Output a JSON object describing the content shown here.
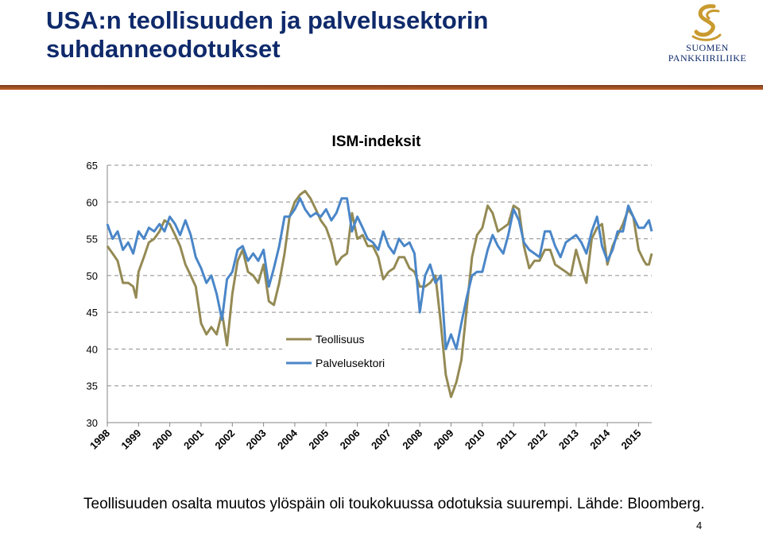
{
  "slide": {
    "title_line1": "USA:n teollisuuden ja palvelusektorin",
    "title_line2": "suhdanneodotukset",
    "caption": "Teollisuuden osalta muutos ylöspäin oli toukokuussa odotuksia suurempi.  Lähde: Bloomberg.",
    "page_number": "4"
  },
  "logo": {
    "line1": "SUOMEN",
    "line2": "PANKKIIRILIIKE",
    "icon": "s-swirl-icon",
    "color": "#c99a2e"
  },
  "colors": {
    "title": "#0f2a6b",
    "rule": "#b4582a",
    "teollisuus": "#948a54",
    "palvelusektori": "#4a86c8"
  },
  "chart_data": {
    "type": "line",
    "title": "ISM-indeksit",
    "ylim": [
      30,
      65
    ],
    "yticks": [
      "30",
      "35",
      "40",
      "45",
      "50",
      "55",
      "60",
      "65"
    ],
    "xlim": [
      1998.0,
      2015.42
    ],
    "xticks": [
      "1998",
      "1999",
      "2000",
      "2001",
      "2002",
      "2003",
      "2004",
      "2005",
      "2006",
      "2007",
      "2008",
      "2009",
      "2010",
      "2011",
      "2012",
      "2013",
      "2014",
      "2015"
    ],
    "grid": true,
    "legend_position": "lower-center",
    "series": [
      {
        "name": "Teollisuus",
        "color": "#948a54",
        "points": [
          [
            1998.0,
            54
          ],
          [
            1998.17,
            53
          ],
          [
            1998.33,
            52
          ],
          [
            1998.5,
            49
          ],
          [
            1998.67,
            49
          ],
          [
            1998.83,
            48.5
          ],
          [
            1998.92,
            47
          ],
          [
            1999.0,
            50.5
          ],
          [
            1999.17,
            52.5
          ],
          [
            1999.33,
            54.5
          ],
          [
            1999.5,
            55
          ],
          [
            1999.67,
            56
          ],
          [
            1999.83,
            57.5
          ],
          [
            2000.0,
            57
          ],
          [
            2000.17,
            55.5
          ],
          [
            2000.33,
            54
          ],
          [
            2000.5,
            51.5
          ],
          [
            2000.67,
            50
          ],
          [
            2000.83,
            48.5
          ],
          [
            2001.0,
            43.5
          ],
          [
            2001.17,
            42
          ],
          [
            2001.33,
            43
          ],
          [
            2001.5,
            42
          ],
          [
            2001.67,
            45
          ],
          [
            2001.83,
            40.5
          ],
          [
            2002.0,
            47.5
          ],
          [
            2002.17,
            52
          ],
          [
            2002.33,
            53.5
          ],
          [
            2002.5,
            50.5
          ],
          [
            2002.67,
            50
          ],
          [
            2002.83,
            49
          ],
          [
            2003.0,
            51.5
          ],
          [
            2003.17,
            46.5
          ],
          [
            2003.33,
            46
          ],
          [
            2003.5,
            49
          ],
          [
            2003.67,
            53
          ],
          [
            2003.83,
            58
          ],
          [
            2004.0,
            60
          ],
          [
            2004.17,
            61
          ],
          [
            2004.33,
            61.5
          ],
          [
            2004.5,
            60.5
          ],
          [
            2004.67,
            59
          ],
          [
            2004.83,
            57.5
          ],
          [
            2005.0,
            56.5
          ],
          [
            2005.17,
            54.5
          ],
          [
            2005.33,
            51.5
          ],
          [
            2005.5,
            52.5
          ],
          [
            2005.67,
            53
          ],
          [
            2005.83,
            58.5
          ],
          [
            2006.0,
            55
          ],
          [
            2006.17,
            55.5
          ],
          [
            2006.33,
            54
          ],
          [
            2006.5,
            54
          ],
          [
            2006.67,
            52.5
          ],
          [
            2006.83,
            49.5
          ],
          [
            2007.0,
            50.5
          ],
          [
            2007.17,
            51
          ],
          [
            2007.33,
            52.5
          ],
          [
            2007.5,
            52.5
          ],
          [
            2007.67,
            51
          ],
          [
            2007.83,
            50.5
          ],
          [
            2008.0,
            48.5
          ],
          [
            2008.17,
            48.5
          ],
          [
            2008.33,
            49
          ],
          [
            2008.5,
            50
          ],
          [
            2008.67,
            43.5
          ],
          [
            2008.83,
            36.5
          ],
          [
            2009.0,
            33.5
          ],
          [
            2009.17,
            35.5
          ],
          [
            2009.33,
            38.5
          ],
          [
            2009.5,
            45.5
          ],
          [
            2009.67,
            52.5
          ],
          [
            2009.83,
            55.5
          ],
          [
            2010.0,
            56.5
          ],
          [
            2010.17,
            59.5
          ],
          [
            2010.33,
            58.5
          ],
          [
            2010.5,
            56
          ],
          [
            2010.67,
            56.5
          ],
          [
            2010.83,
            57
          ],
          [
            2011.0,
            59.5
          ],
          [
            2011.17,
            59
          ],
          [
            2011.33,
            54
          ],
          [
            2011.5,
            51
          ],
          [
            2011.67,
            52
          ],
          [
            2011.83,
            52
          ],
          [
            2012.0,
            53.5
          ],
          [
            2012.17,
            53.5
          ],
          [
            2012.33,
            51.5
          ],
          [
            2012.5,
            51
          ],
          [
            2012.67,
            50.5
          ],
          [
            2012.83,
            50
          ],
          [
            2013.0,
            53.5
          ],
          [
            2013.17,
            51
          ],
          [
            2013.33,
            49
          ],
          [
            2013.5,
            55
          ],
          [
            2013.67,
            56.5
          ],
          [
            2013.83,
            57
          ],
          [
            2014.0,
            51.5
          ],
          [
            2014.17,
            54
          ],
          [
            2014.33,
            55.5
          ],
          [
            2014.5,
            57
          ],
          [
            2014.67,
            59
          ],
          [
            2014.83,
            58
          ],
          [
            2015.0,
            53.5
          ],
          [
            2015.17,
            52
          ],
          [
            2015.25,
            51.5
          ],
          [
            2015.33,
            51.5
          ],
          [
            2015.42,
            53
          ]
        ]
      },
      {
        "name": "Palvelusektori",
        "color": "#4a86c8",
        "points": [
          [
            1998.0,
            57
          ],
          [
            1998.17,
            55
          ],
          [
            1998.33,
            56
          ],
          [
            1998.5,
            53.5
          ],
          [
            1998.67,
            54.5
          ],
          [
            1998.83,
            53
          ],
          [
            1999.0,
            56
          ],
          [
            1999.17,
            55
          ],
          [
            1999.33,
            56.5
          ],
          [
            1999.5,
            56
          ],
          [
            1999.67,
            57
          ],
          [
            1999.83,
            56
          ],
          [
            2000.0,
            58
          ],
          [
            2000.17,
            57
          ],
          [
            2000.33,
            55.5
          ],
          [
            2000.5,
            57.5
          ],
          [
            2000.67,
            55.5
          ],
          [
            2000.83,
            52.5
          ],
          [
            2001.0,
            51
          ],
          [
            2001.17,
            49
          ],
          [
            2001.33,
            50
          ],
          [
            2001.5,
            47.5
          ],
          [
            2001.67,
            44
          ],
          [
            2001.83,
            49.5
          ],
          [
            2002.0,
            50.5
          ],
          [
            2002.17,
            53.5
          ],
          [
            2002.33,
            54
          ],
          [
            2002.5,
            52
          ],
          [
            2002.67,
            53
          ],
          [
            2002.83,
            52
          ],
          [
            2003.0,
            53.5
          ],
          [
            2003.17,
            48.5
          ],
          [
            2003.33,
            51
          ],
          [
            2003.5,
            54
          ],
          [
            2003.67,
            58
          ],
          [
            2003.83,
            58
          ],
          [
            2004.0,
            59
          ],
          [
            2004.17,
            60.5
          ],
          [
            2004.33,
            59
          ],
          [
            2004.5,
            58
          ],
          [
            2004.67,
            58.5
          ],
          [
            2004.83,
            58
          ],
          [
            2005.0,
            59
          ],
          [
            2005.17,
            57.5
          ],
          [
            2005.33,
            58.5
          ],
          [
            2005.5,
            60.5
          ],
          [
            2005.67,
            60.5
          ],
          [
            2005.83,
            56
          ],
          [
            2006.0,
            58
          ],
          [
            2006.17,
            56.5
          ],
          [
            2006.33,
            55
          ],
          [
            2006.5,
            54.5
          ],
          [
            2006.67,
            53.5
          ],
          [
            2006.83,
            56
          ],
          [
            2007.0,
            54
          ],
          [
            2007.17,
            53
          ],
          [
            2007.33,
            55
          ],
          [
            2007.5,
            54
          ],
          [
            2007.67,
            54.5
          ],
          [
            2007.83,
            53
          ],
          [
            2008.0,
            45
          ],
          [
            2008.17,
            50
          ],
          [
            2008.33,
            51.5
          ],
          [
            2008.5,
            49
          ],
          [
            2008.67,
            50
          ],
          [
            2008.83,
            40
          ],
          [
            2009.0,
            42
          ],
          [
            2009.17,
            40
          ],
          [
            2009.33,
            43.5
          ],
          [
            2009.5,
            47
          ],
          [
            2009.67,
            50
          ],
          [
            2009.83,
            50.5
          ],
          [
            2010.0,
            50.5
          ],
          [
            2010.17,
            53.5
          ],
          [
            2010.33,
            55.5
          ],
          [
            2010.5,
            54
          ],
          [
            2010.67,
            53
          ],
          [
            2010.83,
            55.5
          ],
          [
            2011.0,
            59
          ],
          [
            2011.17,
            57.5
          ],
          [
            2011.33,
            54.5
          ],
          [
            2011.5,
            53.5
          ],
          [
            2011.67,
            53
          ],
          [
            2011.83,
            52.5
          ],
          [
            2012.0,
            56
          ],
          [
            2012.17,
            56
          ],
          [
            2012.33,
            54
          ],
          [
            2012.5,
            52.5
          ],
          [
            2012.67,
            54.5
          ],
          [
            2012.83,
            55
          ],
          [
            2013.0,
            55.5
          ],
          [
            2013.17,
            54.5
          ],
          [
            2013.33,
            53
          ],
          [
            2013.5,
            56
          ],
          [
            2013.67,
            58
          ],
          [
            2013.83,
            54
          ],
          [
            2014.0,
            52
          ],
          [
            2014.17,
            53.5
          ],
          [
            2014.33,
            56
          ],
          [
            2014.5,
            56
          ],
          [
            2014.67,
            59.5
          ],
          [
            2014.83,
            58
          ],
          [
            2015.0,
            56.5
          ],
          [
            2015.17,
            56.5
          ],
          [
            2015.25,
            57
          ],
          [
            2015.33,
            57.5
          ],
          [
            2015.42,
            56
          ]
        ]
      }
    ]
  }
}
